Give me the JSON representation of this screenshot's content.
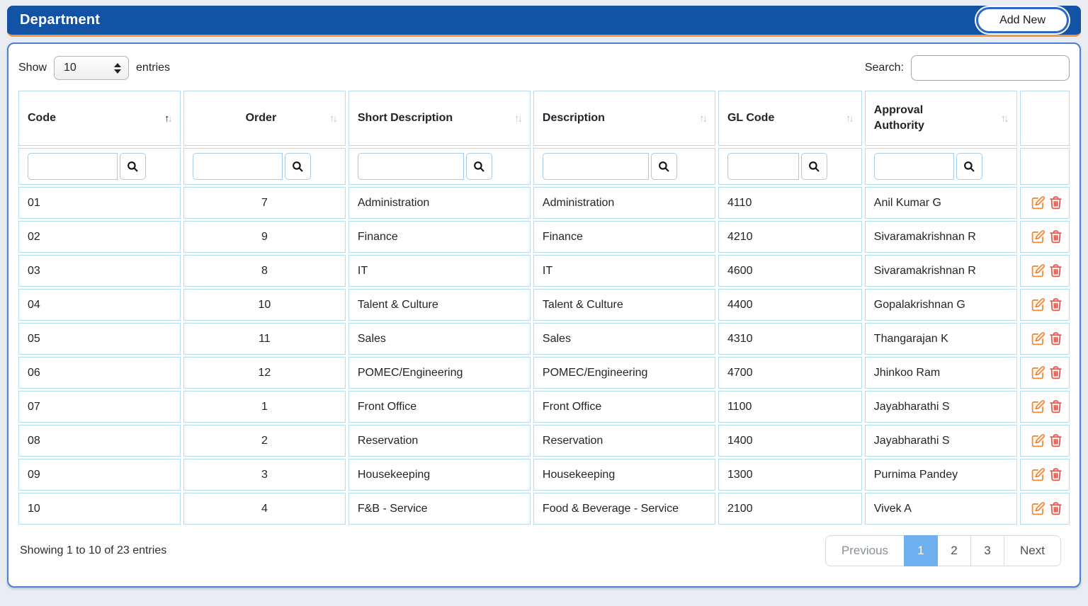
{
  "header": {
    "title": "Department",
    "add_new_label": "Add New"
  },
  "controls": {
    "show_label": "Show",
    "page_length": "10",
    "entries_label": "entries",
    "search_label": "Search:",
    "search_value": ""
  },
  "table": {
    "columns": [
      {
        "label": "Code",
        "sorted": "asc"
      },
      {
        "label": "Order",
        "sorted": "none"
      },
      {
        "label": "Short Description",
        "sorted": "none"
      },
      {
        "label": "Description",
        "sorted": "none"
      },
      {
        "label": "GL Code",
        "sorted": "none"
      },
      {
        "label": "Approval Authority",
        "sorted": "none"
      },
      {
        "label": "",
        "sorted": "none"
      }
    ],
    "rows": [
      {
        "code": "01",
        "order": "7",
        "short_desc": "Administration",
        "desc": "Administration",
        "gl_code": "4110",
        "approval": "Anil Kumar G"
      },
      {
        "code": "02",
        "order": "9",
        "short_desc": "Finance",
        "desc": "Finance",
        "gl_code": "4210",
        "approval": "Sivaramakrishnan R"
      },
      {
        "code": "03",
        "order": "8",
        "short_desc": "IT",
        "desc": "IT",
        "gl_code": "4600",
        "approval": "Sivaramakrishnan R"
      },
      {
        "code": "04",
        "order": "10",
        "short_desc": "Talent & Culture",
        "desc": "Talent & Culture",
        "gl_code": "4400",
        "approval": "Gopalakrishnan G"
      },
      {
        "code": "05",
        "order": "11",
        "short_desc": "Sales",
        "desc": "Sales",
        "gl_code": "4310",
        "approval": "Thangarajan K"
      },
      {
        "code": "06",
        "order": "12",
        "short_desc": "POMEC/Engineering",
        "desc": "POMEC/Engineering",
        "gl_code": "4700",
        "approval": "Jhinkoo Ram"
      },
      {
        "code": "07",
        "order": "1",
        "short_desc": "Front Office",
        "desc": "Front Office",
        "gl_code": "1100",
        "approval": "Jayabharathi S"
      },
      {
        "code": "08",
        "order": "2",
        "short_desc": "Reservation",
        "desc": "Reservation",
        "gl_code": "1400",
        "approval": "Jayabharathi S"
      },
      {
        "code": "09",
        "order": "3",
        "short_desc": "Housekeeping",
        "desc": "Housekeeping",
        "gl_code": "1300",
        "approval": "Purnima Pandey"
      },
      {
        "code": "10",
        "order": "4",
        "short_desc": "F&B - Service",
        "desc": "Food & Beverage - Service",
        "gl_code": "2100",
        "approval": "Vivek A"
      }
    ]
  },
  "footer": {
    "info": "Showing 1 to 10 of 23 entries",
    "pagination": {
      "previous": "Previous",
      "pages": [
        "1",
        "2",
        "3"
      ],
      "active_page": "1",
      "next": "Next"
    }
  },
  "colors": {
    "header_blue": "#1353a6",
    "header_orange": "#f0983f",
    "panel_border_blue": "#4e7fd2",
    "table_border_blue": "#b7dbf3",
    "edit_icon_orange": "#f6883a",
    "delete_icon_red": "#e2584d",
    "active_page_blue": "#6fb1f0"
  }
}
